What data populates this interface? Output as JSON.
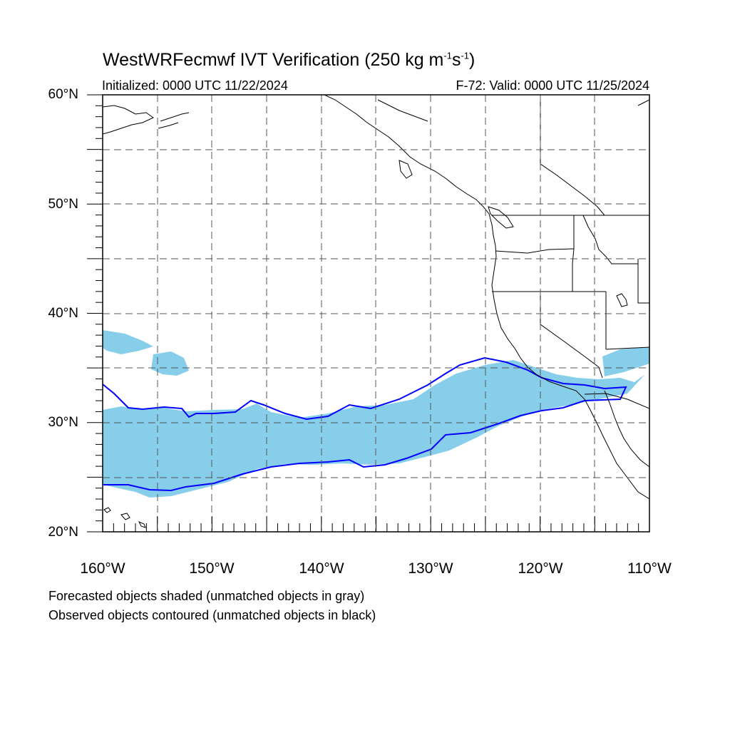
{
  "title": {
    "main": "WestWRFecmwf IVT Verification (250 kg m",
    "sup1": "-1",
    "mid": "s",
    "sup2": "-1",
    "close": ")"
  },
  "subtitle": {
    "initialized": "Initialized: 0000 UTC 11/22/2024",
    "valid": "F-72: Valid: 0000 UTC 11/25/2024"
  },
  "axes": {
    "lat_labels": [
      "60°N",
      "50°N",
      "40°N",
      "30°N",
      "20°N"
    ],
    "lon_labels": [
      "160°W",
      "150°W",
      "140°W",
      "130°W",
      "120°W",
      "110°W"
    ]
  },
  "footer": {
    "line1": "Forecasted objects shaded (unmatched objects in gray)",
    "line2": "Observed objects contoured (unmatched objects in black)"
  },
  "map": {
    "lon_range": [
      -160,
      -110
    ],
    "lat_range": [
      20,
      60
    ],
    "grid_interval_deg": 5,
    "forecast_fill_color": "#87ceeb",
    "observed_contour_color": "#0000ff",
    "coastline_color": "#000000",
    "gridline_style": "dashed"
  }
}
